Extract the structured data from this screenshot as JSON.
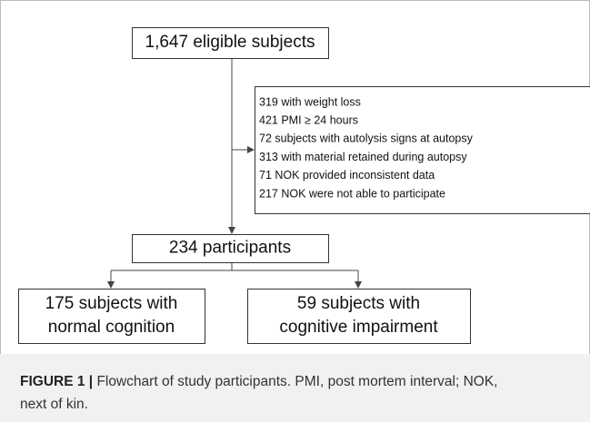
{
  "nodes": [
    {
      "lines": [
        "1,647 eligible subjects"
      ]
    },
    {
      "lines": [
        "319 with weight loss",
        "421 PMI ≥ 24 hours",
        "72 subjects with autolysis signs at autopsy",
        "313 with material retained during autopsy",
        "71 NOK provided inconsistent data",
        "217 NOK were not able to participate"
      ]
    },
    {
      "lines": [
        "234 participants"
      ]
    },
    {
      "lines": [
        "175 subjects with",
        "normal cognition"
      ]
    },
    {
      "lines": [
        "59 subjects with",
        "cognitive impairment"
      ]
    }
  ],
  "caption": {
    "label": "FIGURE 1",
    "separator": "|",
    "text": "Flowchart of study participants. PMI, post mortem interval; NOK, next of kin."
  }
}
